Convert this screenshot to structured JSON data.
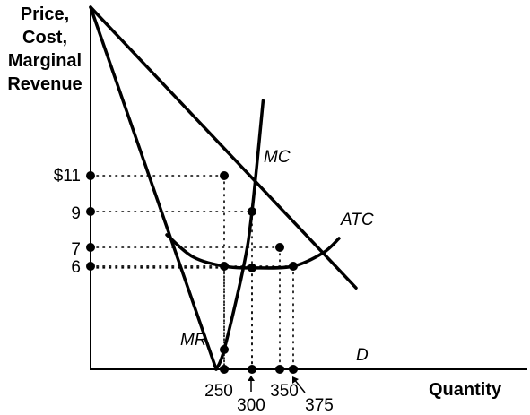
{
  "chart_data": {
    "type": "line",
    "title": "",
    "ylabel_lines": [
      "Price,",
      "Cost,",
      "Marginal",
      "Revenue"
    ],
    "xlabel": "Quantity",
    "y_ticks": [
      {
        "value": 11,
        "label": "$11"
      },
      {
        "value": 9,
        "label": "9"
      },
      {
        "value": 7,
        "label": "7"
      },
      {
        "value": 6,
        "label": "6"
      }
    ],
    "x_ticks": [
      {
        "value": 250,
        "label": "250"
      },
      {
        "value": 300,
        "label": "300"
      },
      {
        "value": 350,
        "label": "350"
      },
      {
        "value": 375,
        "label": "375"
      }
    ],
    "curves": {
      "D": {
        "label": "D",
        "points": [
          [
            0,
            20
          ],
          [
            400,
            4.7
          ]
        ]
      },
      "MR": {
        "label": "MR",
        "points": [
          [
            0,
            20
          ],
          [
            235,
            0
          ]
        ]
      },
      "MC": {
        "label": "MC",
        "points": [
          [
            235,
            0
          ],
          [
            250,
            1
          ],
          [
            285,
            6
          ],
          [
            300,
            9
          ],
          [
            320,
            15
          ]
        ]
      },
      "ATC": {
        "label": "ATC",
        "points": [
          [
            130,
            7.7
          ],
          [
            190,
            6.5
          ],
          [
            250,
            6.0
          ],
          [
            300,
            5.9
          ],
          [
            350,
            6.0
          ],
          [
            410,
            6.7
          ],
          [
            450,
            7.5
          ]
        ]
      }
    },
    "points": [
      {
        "x": 250,
        "y": 11
      },
      {
        "x": 300,
        "y": 9
      },
      {
        "x": 350,
        "y": 7
      },
      {
        "x": 375,
        "y": 6
      },
      {
        "x": 250,
        "y": 6
      },
      {
        "x": 300,
        "y": 5.9
      },
      {
        "x": 250,
        "y": 1
      }
    ],
    "guides": [
      {
        "x": 250,
        "y": 11
      },
      {
        "x": 300,
        "y": 9
      },
      {
        "x": 350,
        "y": 7
      },
      {
        "x": 375,
        "y": 6
      },
      {
        "x": 250,
        "y": 6
      },
      {
        "x": 300,
        "y": 5.9
      }
    ],
    "xlim": [
      0,
      620
    ],
    "ylim": [
      0,
      20
    ]
  }
}
